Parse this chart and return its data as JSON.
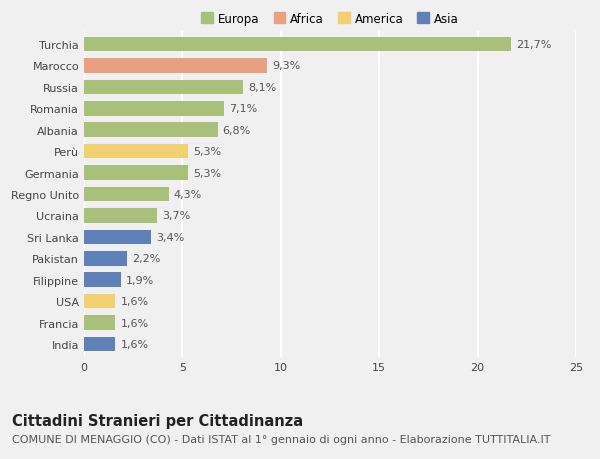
{
  "categories": [
    "Turchia",
    "Marocco",
    "Russia",
    "Romania",
    "Albania",
    "Perù",
    "Germania",
    "Regno Unito",
    "Ucraina",
    "Sri Lanka",
    "Pakistan",
    "Filippine",
    "USA",
    "Francia",
    "India"
  ],
  "values": [
    21.7,
    9.3,
    8.1,
    7.1,
    6.8,
    5.3,
    5.3,
    4.3,
    3.7,
    3.4,
    2.2,
    1.9,
    1.6,
    1.6,
    1.6
  ],
  "labels": [
    "21,7%",
    "9,3%",
    "8,1%",
    "7,1%",
    "6,8%",
    "5,3%",
    "5,3%",
    "4,3%",
    "3,7%",
    "3,4%",
    "2,2%",
    "1,9%",
    "1,6%",
    "1,6%",
    "1,6%"
  ],
  "continents": [
    "Europa",
    "Africa",
    "Europa",
    "Europa",
    "Europa",
    "America",
    "Europa",
    "Europa",
    "Europa",
    "Asia",
    "Asia",
    "Asia",
    "America",
    "Europa",
    "Asia"
  ],
  "colors": {
    "Europa": "#a8c07a",
    "Africa": "#e8a080",
    "America": "#f0d070",
    "Asia": "#6080b8"
  },
  "xlim": [
    0,
    25
  ],
  "xticks": [
    0,
    5,
    10,
    15,
    20,
    25
  ],
  "background_color": "#f0f0f0",
  "plot_bg_color": "#f0f0f0",
  "grid_color": "#ffffff",
  "title": "Cittadini Stranieri per Cittadinanza",
  "subtitle": "COMUNE DI MENAGGIO (CO) - Dati ISTAT al 1° gennaio di ogni anno - Elaborazione TUTTITALIA.IT",
  "title_fontsize": 10.5,
  "subtitle_fontsize": 8,
  "label_fontsize": 8,
  "tick_fontsize": 8,
  "legend_fontsize": 8.5,
  "legend_entries": [
    "Europa",
    "Africa",
    "America",
    "Asia"
  ]
}
